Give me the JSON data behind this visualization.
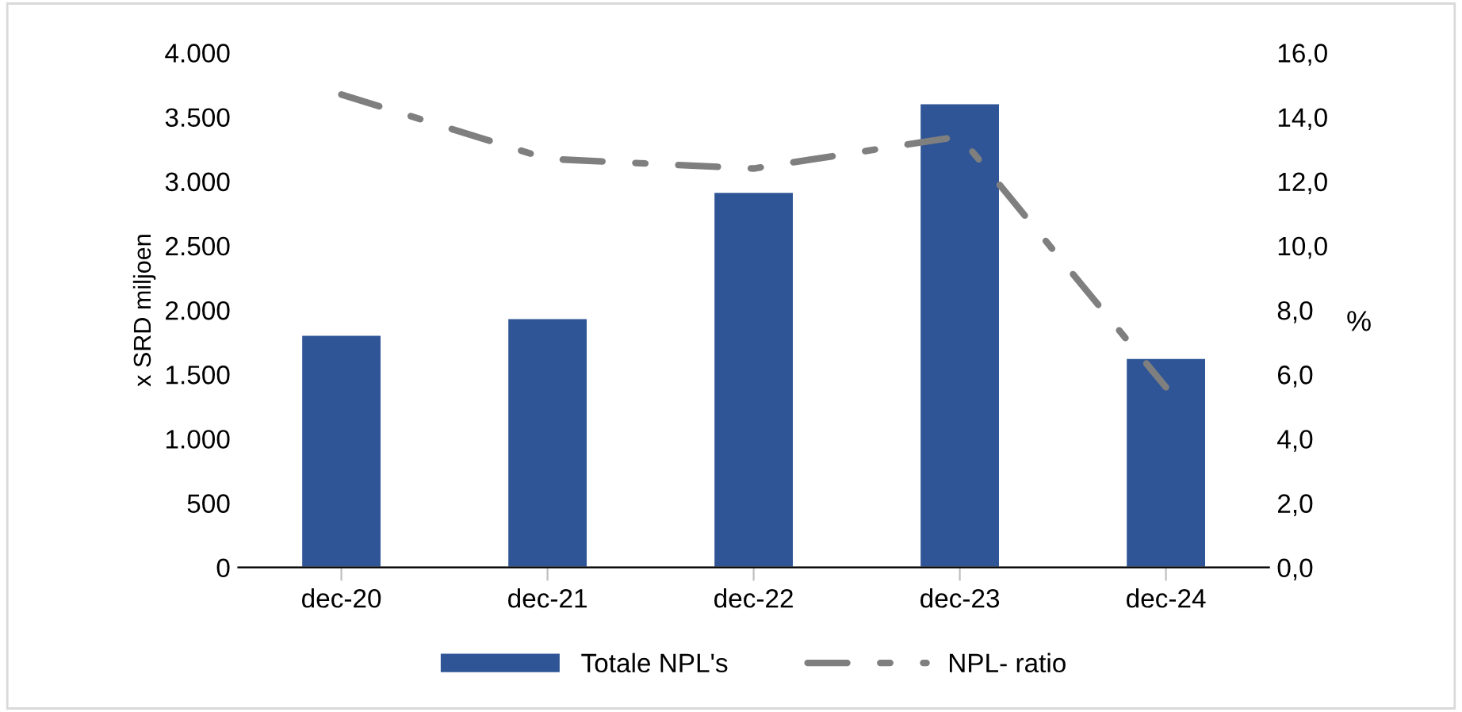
{
  "chart_data": {
    "type": "bar",
    "categories": [
      "dec-20",
      "dec-21",
      "dec-22",
      "dec-23",
      "dec-24"
    ],
    "series": [
      {
        "name": "Totale NPL's",
        "color": "#2f5597",
        "values": [
          1800,
          1930,
          2910,
          3600,
          1620
        ]
      },
      {
        "name": "NPL- ratio",
        "type": "line",
        "axis": "y2",
        "color": "#7f7f7f",
        "line_style": "dashdot",
        "values": [
          14.7,
          12.7,
          12.4,
          13.4,
          5.6
        ]
      }
    ],
    "ylabel": "x SRD miljoen",
    "y2label": "%",
    "ylim": [
      0,
      4000
    ],
    "yticks": [
      {
        "value": 0,
        "label": "0"
      },
      {
        "value": 500,
        "label": "500"
      },
      {
        "value": 1000,
        "label": "1.000"
      },
      {
        "value": 1500,
        "label": "1.500"
      },
      {
        "value": 2000,
        "label": "2.000"
      },
      {
        "value": 2500,
        "label": "2.500"
      },
      {
        "value": 3000,
        "label": "3.000"
      },
      {
        "value": 3500,
        "label": "3.500"
      },
      {
        "value": 4000,
        "label": "4.000"
      }
    ],
    "y2lim": [
      0,
      16
    ],
    "y2ticks": [
      {
        "value": 0,
        "label": "0,0"
      },
      {
        "value": 2,
        "label": "2,0"
      },
      {
        "value": 4,
        "label": "4,0"
      },
      {
        "value": 6,
        "label": "6,0"
      },
      {
        "value": 8,
        "label": "8,0"
      },
      {
        "value": 10,
        "label": "10,0"
      },
      {
        "value": 12,
        "label": "12,0"
      },
      {
        "value": 14,
        "label": "14,0"
      },
      {
        "value": 16,
        "label": "16,0"
      }
    ],
    "grid": false,
    "legend": "bottom"
  }
}
